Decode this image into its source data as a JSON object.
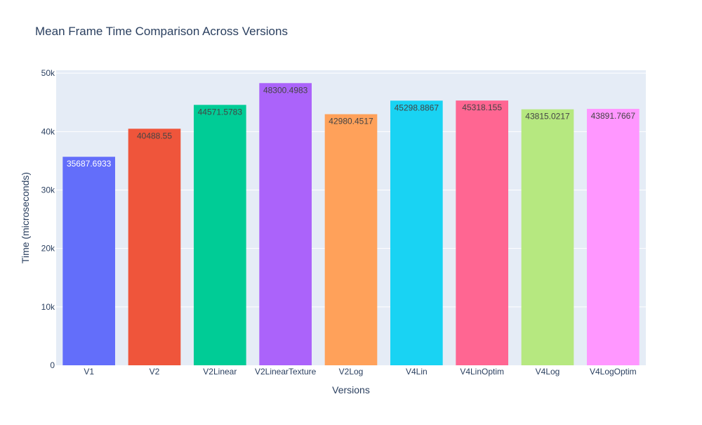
{
  "chart_data": {
    "type": "bar",
    "title": "Mean Frame Time Comparison Across Versions",
    "xlabel": "Versions",
    "ylabel": "Time (microseconds)",
    "categories": [
      "V1",
      "V2",
      "V2Linear",
      "V2LinearTexture",
      "V2Log",
      "V4Lin",
      "V4LinOptim",
      "V4Log",
      "V4LogOptim"
    ],
    "values": [
      35687.6933,
      40488.55,
      44571.5783,
      48300.4983,
      42980.4517,
      45298.8867,
      45318.155,
      43815.0217,
      43891.7667
    ],
    "data_labels": [
      "35687.6933",
      "40488.55",
      "44571.5783",
      "48300.4983",
      "42980.4517",
      "45298.8867",
      "45318.155",
      "43815.0217",
      "43891.7667"
    ],
    "colors": [
      "#636efa",
      "#ef553b",
      "#00cc96",
      "#ab63fa",
      "#ffa15a",
      "#19d3f3",
      "#ff6692",
      "#b6e880",
      "#ff97ff"
    ],
    "label_colors": [
      "#ffffff",
      "#444444",
      "#444444",
      "#444444",
      "#444444",
      "#444444",
      "#444444",
      "#444444",
      "#444444"
    ],
    "ylim": [
      0,
      50500
    ],
    "yticks": [
      0,
      10000,
      20000,
      30000,
      40000,
      50000
    ],
    "ytick_labels": [
      "0",
      "10k",
      "20k",
      "30k",
      "40k",
      "50k"
    ],
    "grid": true,
    "plot_bgcolor": "#e5ecf6",
    "legend": "none"
  }
}
